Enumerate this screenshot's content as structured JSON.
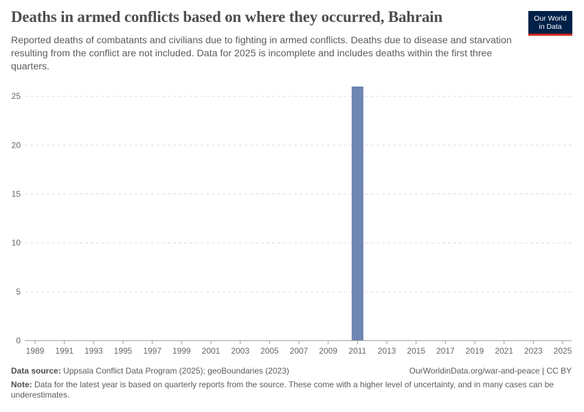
{
  "header": {
    "title": "Deaths in armed conflicts based on where they occurred, Bahrain",
    "subtitle": "Reported deaths of combatants and civilians due to fighting in armed conflicts. Deaths due to disease and starvation resulting from the conflict are not included. Data for 2025 is incomplete and includes deaths within the first three quarters.",
    "logo_line1": "Our World",
    "logo_line2": "in Data"
  },
  "colors": {
    "bar": "#6d86b2",
    "grid": "#dddddd",
    "title": "#4e4e4e",
    "logo_bg": "#002147",
    "logo_accent": "#ce261e"
  },
  "chart_data": {
    "type": "bar",
    "title": "Deaths in armed conflicts based on where they occurred, Bahrain",
    "xlabel": "",
    "ylabel": "",
    "ylim": [
      0,
      26
    ],
    "yticks": [
      0,
      5,
      10,
      15,
      20,
      25
    ],
    "x_range": [
      1989,
      2025
    ],
    "xticks": [
      1989,
      1991,
      1993,
      1995,
      1997,
      1999,
      2001,
      2003,
      2005,
      2007,
      2009,
      2011,
      2013,
      2015,
      2017,
      2019,
      2021,
      2023,
      2025
    ],
    "categories": [
      2011
    ],
    "values": [
      26
    ],
    "grid": true
  },
  "footer": {
    "source_label": "Data source:",
    "source_text": "Uppsala Conflict Data Program (2025); geoBoundaries (2023)",
    "credit": "OurWorldinData.org/war-and-peace | CC BY",
    "note_label": "Note:",
    "note_text": "Data for the latest year is based on quarterly reports from the source. These come with a higher level of uncertainty, and in many cases can be underestimates."
  }
}
